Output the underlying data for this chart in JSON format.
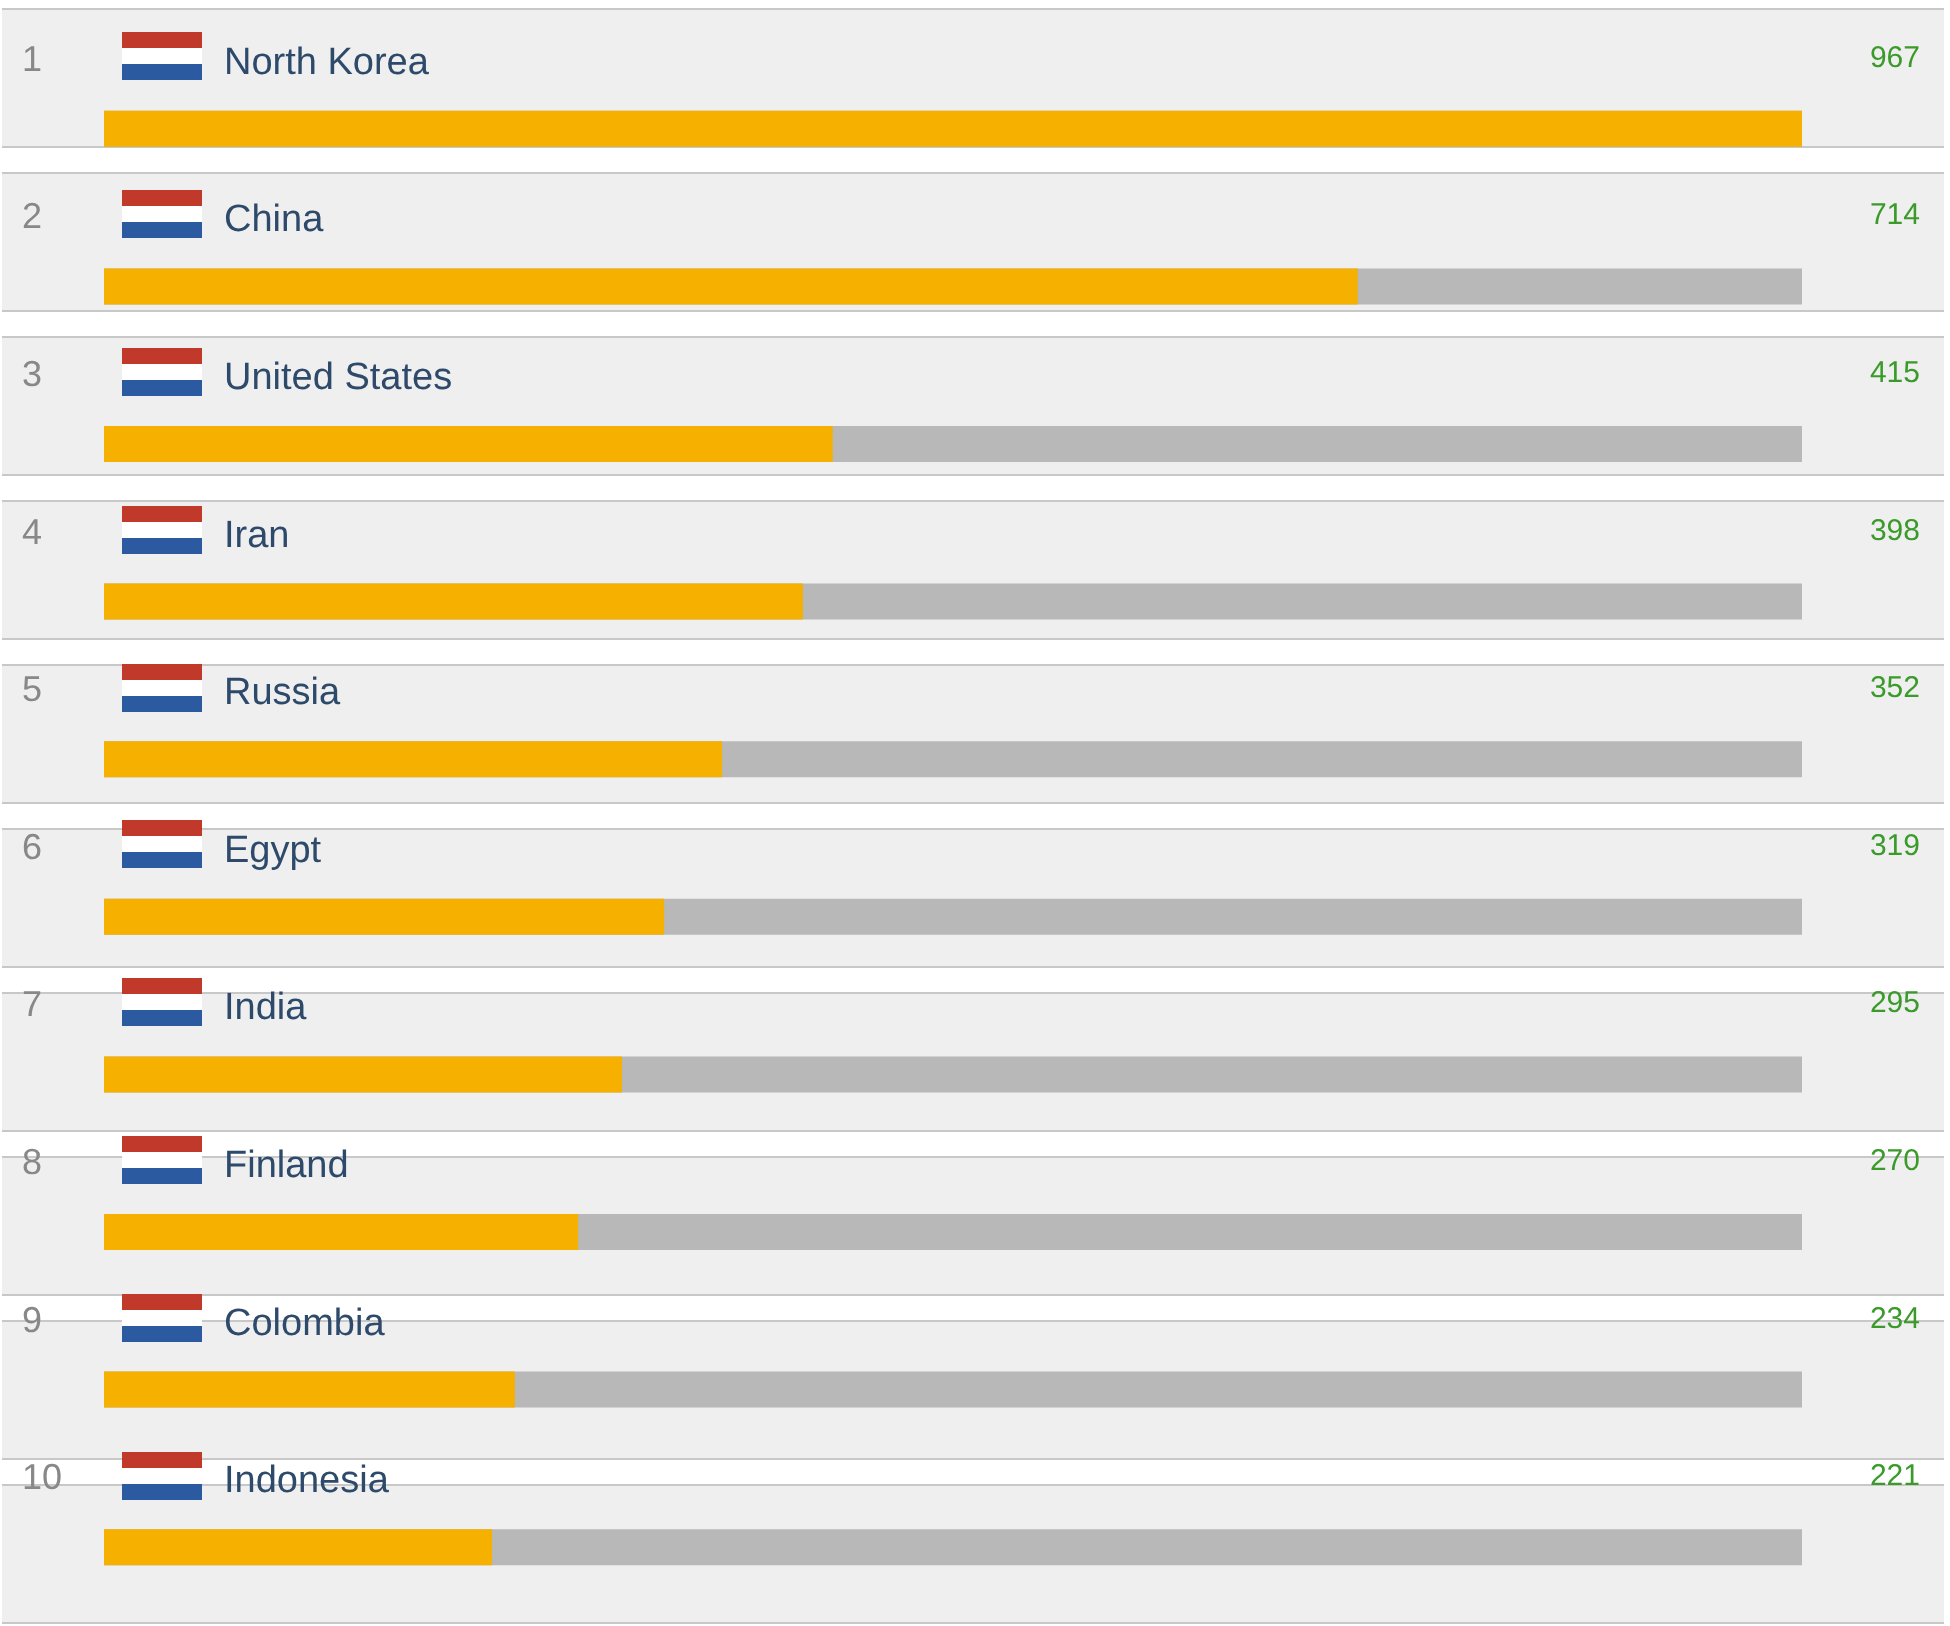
{
  "chart_data": {
    "type": "bar",
    "orientation": "horizontal",
    "categories": [
      "North Korea",
      "China",
      "United States",
      "Iran",
      "Russia",
      "Egypt",
      "India",
      "Finland",
      "Colombia",
      "Indonesia"
    ],
    "values": [
      967,
      714,
      415,
      398,
      352,
      319,
      295,
      270,
      234,
      221
    ],
    "color": "#f5b000",
    "data_labels": true,
    "tick_labels": "y",
    "annotations": [
      "1",
      "2",
      "3",
      "4",
      "5",
      "6",
      "7",
      "8",
      "9",
      "10"
    ]
  }
}
